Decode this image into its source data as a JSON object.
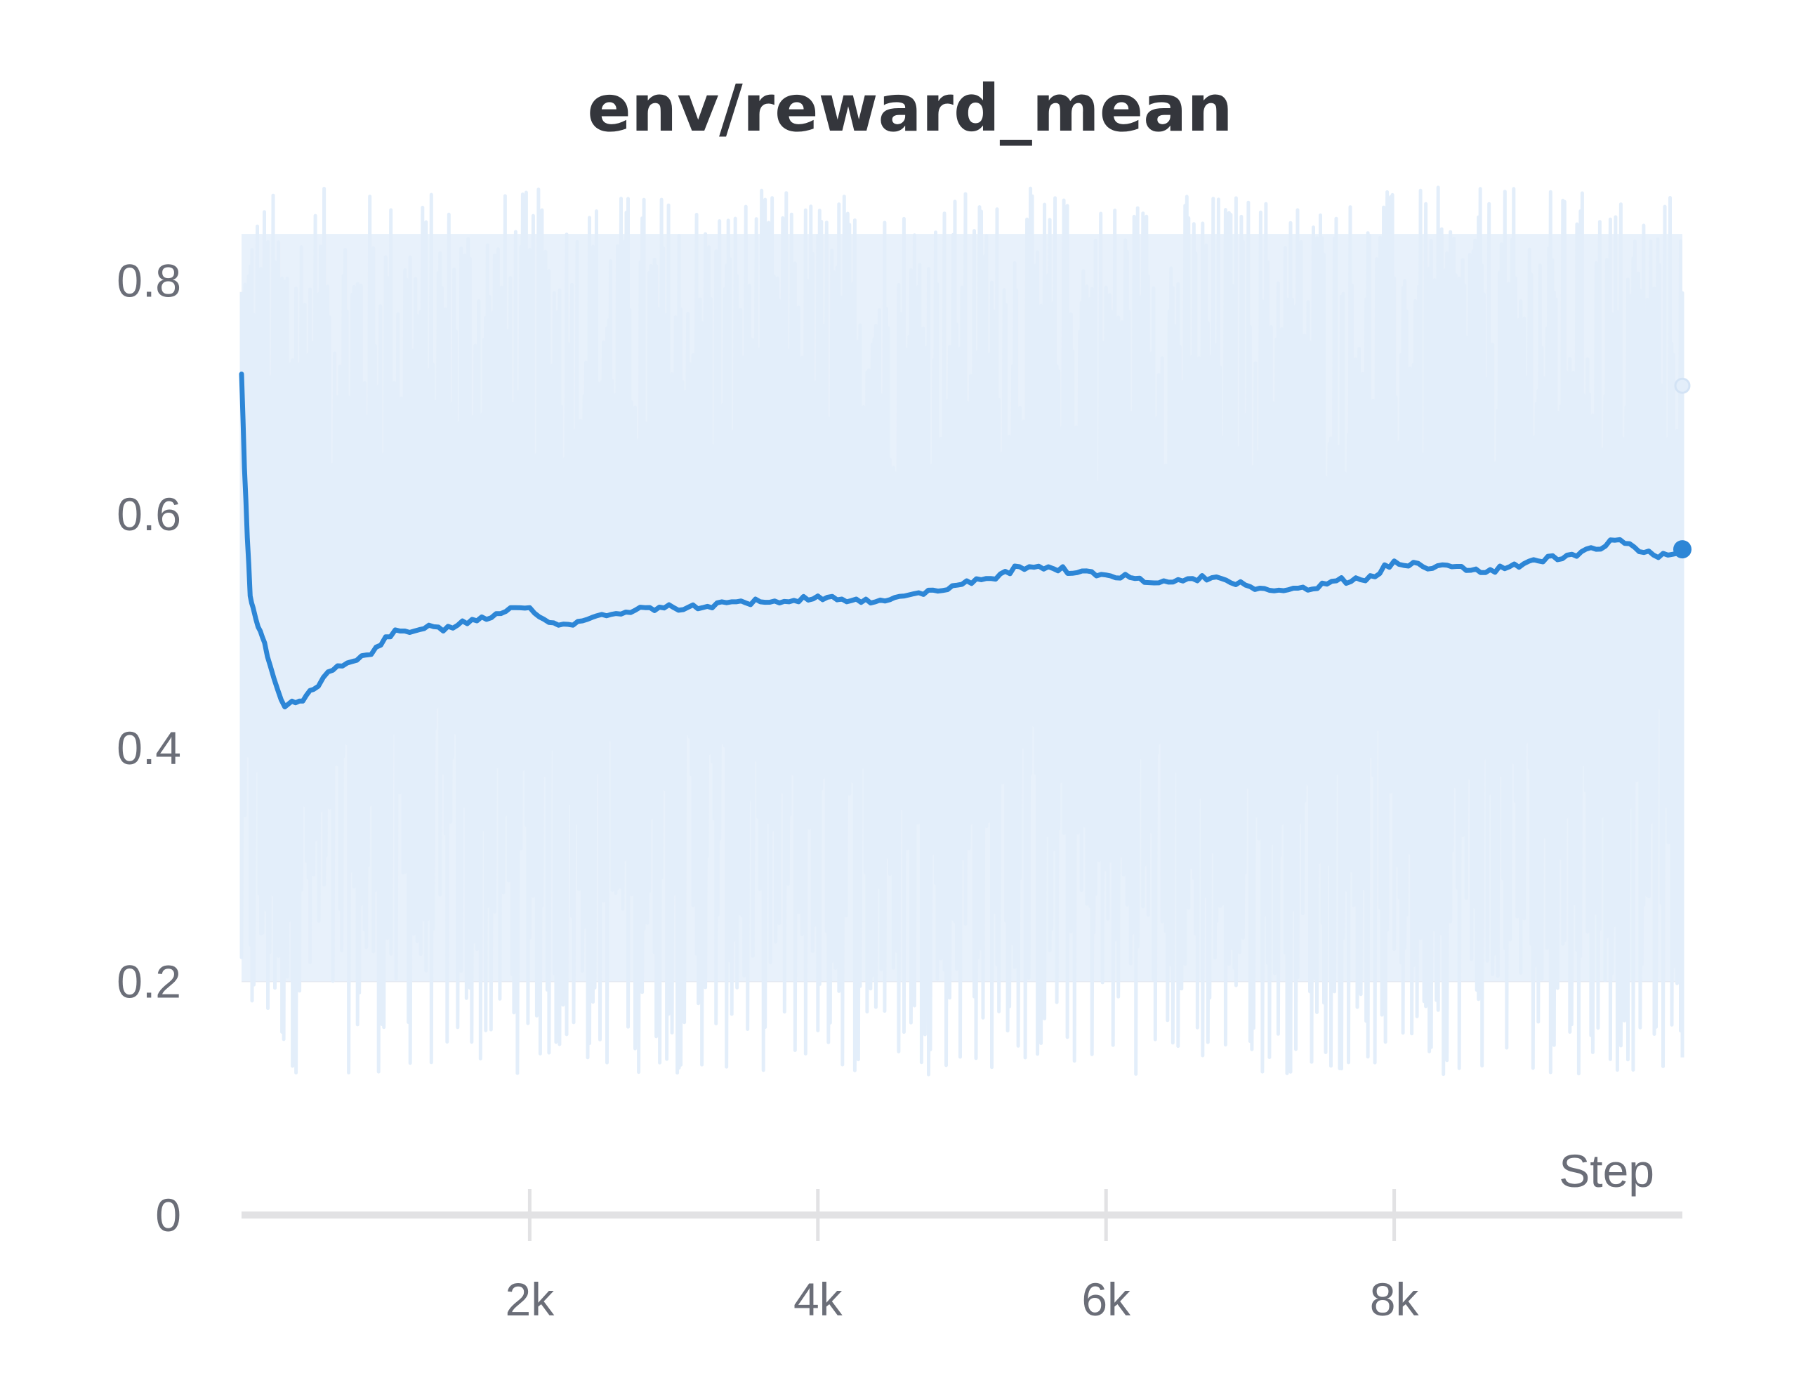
{
  "chart_data": {
    "type": "line",
    "title": "env/reward_mean",
    "xlabel": "Step",
    "ylabel": "",
    "xlim": [
      0,
      10000
    ],
    "ylim": [
      0,
      0.9
    ],
    "x_ticks": [
      {
        "value": 2000,
        "label": "2k"
      },
      {
        "value": 4000,
        "label": "4k"
      },
      {
        "value": 6000,
        "label": "6k"
      },
      {
        "value": 8000,
        "label": "8k"
      }
    ],
    "y_ticks": [
      {
        "value": 0,
        "label": "0",
        "grid": false
      },
      {
        "value": 0.2,
        "label": "0.2",
        "grid": true
      },
      {
        "value": 0.4,
        "label": "0.4",
        "grid": true
      },
      {
        "value": 0.6,
        "label": "0.6",
        "grid": true
      },
      {
        "value": 0.8,
        "label": "0.8",
        "grid": true
      }
    ],
    "grid": true,
    "legend": "none",
    "colors": {
      "smoothed": "#2d86d6",
      "raw": "#e3eefa",
      "raw_band": "#e8f1fb"
    },
    "series": [
      {
        "role": "smoothed",
        "x": [
          0,
          20,
          40,
          60,
          80,
          100,
          130,
          160,
          200,
          250,
          300,
          350,
          400,
          450,
          500,
          600,
          700,
          800,
          900,
          1000,
          1100,
          1200,
          1300,
          1400,
          1500,
          1600,
          1700,
          1800,
          1900,
          2000,
          2100,
          2200,
          2300,
          2400,
          2600,
          2800,
          3000,
          3200,
          3400,
          3600,
          3800,
          4000,
          4200,
          4400,
          4600,
          4800,
          5000,
          5200,
          5400,
          5600,
          5800,
          6000,
          6200,
          6400,
          6600,
          6800,
          7000,
          7200,
          7400,
          7600,
          7800,
          8000,
          8200,
          8400,
          8600,
          8800,
          9000,
          9200,
          9400,
          9500,
          9600,
          9700,
          9800,
          9900,
          10000
        ],
        "y": [
          0.72,
          0.64,
          0.58,
          0.53,
          0.52,
          0.51,
          0.5,
          0.49,
          0.47,
          0.45,
          0.435,
          0.44,
          0.44,
          0.445,
          0.45,
          0.465,
          0.47,
          0.475,
          0.48,
          0.495,
          0.5,
          0.5,
          0.505,
          0.5,
          0.505,
          0.51,
          0.51,
          0.515,
          0.52,
          0.52,
          0.51,
          0.505,
          0.505,
          0.51,
          0.515,
          0.52,
          0.52,
          0.52,
          0.525,
          0.525,
          0.525,
          0.53,
          0.525,
          0.525,
          0.53,
          0.535,
          0.54,
          0.545,
          0.555,
          0.555,
          0.55,
          0.548,
          0.545,
          0.543,
          0.545,
          0.545,
          0.538,
          0.535,
          0.535,
          0.543,
          0.543,
          0.56,
          0.555,
          0.555,
          0.55,
          0.555,
          0.56,
          0.565,
          0.57,
          0.578,
          0.575,
          0.568,
          0.565,
          0.565,
          0.57
        ]
      },
      {
        "role": "raw",
        "band": {
          "x": [
            0,
            10000
          ],
          "low": 0.2,
          "high": 0.84
        },
        "end_value": 0.71
      }
    ]
  }
}
